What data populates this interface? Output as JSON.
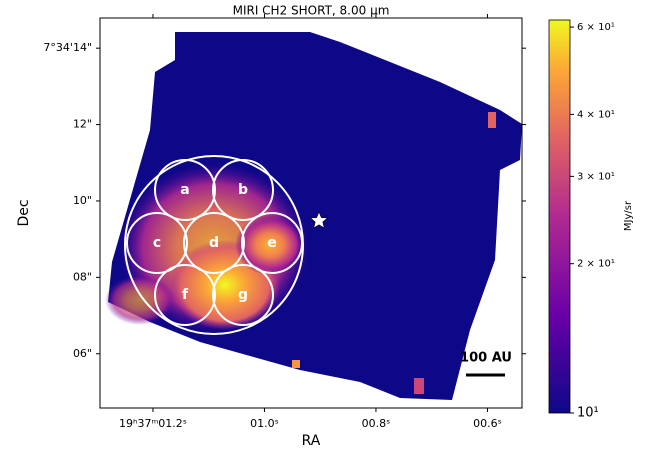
{
  "chart_data": {
    "type": "image",
    "title": "MIRI CH2 SHORT, 8.00 μm",
    "x_label": "RA",
    "y_label": "Dec",
    "xlim": [
      1.295,
      0.538
    ],
    "xticks": [
      {
        "value": 1.2,
        "label": "19ʰ37ᵐ01.2ˢ"
      },
      {
        "value": 1.0,
        "label": "01.0ˢ"
      },
      {
        "value": 0.8,
        "label": "00.8ˢ"
      },
      {
        "value": 0.6,
        "label": "00.6ˢ"
      }
    ],
    "ylim": [
      4.58,
      14.79
    ],
    "yticks": [
      {
        "value": 14,
        "label": "7°34'14\""
      },
      {
        "value": 12,
        "label": "12\""
      },
      {
        "value": 10,
        "label": "10\""
      },
      {
        "value": 8,
        "label": "08\""
      },
      {
        "value": 6,
        "label": "06\""
      }
    ],
    "colorbar": {
      "label": "MJy/sr",
      "log_scale": true,
      "zlim": [
        10,
        62
      ],
      "ticks": [
        {
          "value": 10,
          "label": "10¹"
        },
        {
          "value": 20,
          "label": "2 × 10¹"
        },
        {
          "value": 30,
          "label": "3 × 10¹"
        },
        {
          "value": 40,
          "label": "4 × 10¹"
        },
        {
          "value": 60,
          "label": "6 × 10¹"
        }
      ]
    },
    "regions": [
      "a",
      "b",
      "c",
      "d",
      "e",
      "f",
      "g"
    ],
    "scale_bar": "100 AU"
  }
}
